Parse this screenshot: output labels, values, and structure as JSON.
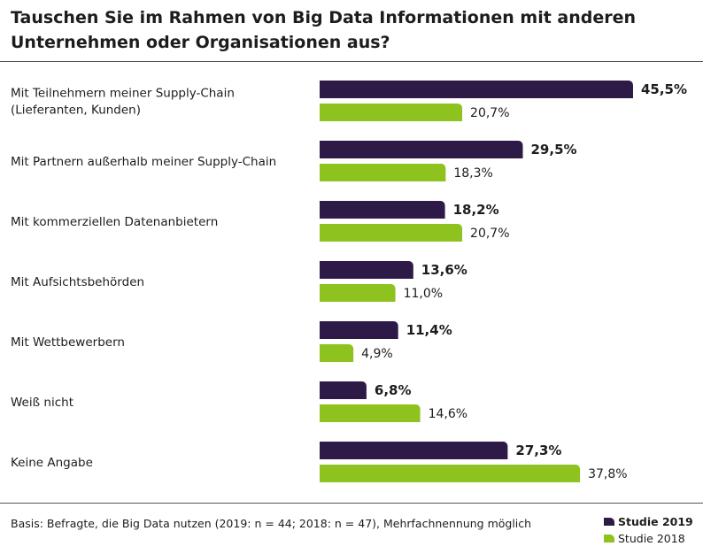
{
  "title": "Tauschen Sie im Rahmen von Big Data Informationen mit anderen Unternehmen oder Organisationen aus?",
  "footnote": "Basis: Befragte, die Big Data nutzen (2019: n = 44; 2018: n = 47), Mehrfachnennung möglich",
  "legend": {
    "items": [
      {
        "label": "Studie 2019",
        "color": "#2e1a47"
      },
      {
        "label": "Studie 2018",
        "color": "#8dc21f"
      }
    ]
  },
  "chart_data": {
    "type": "bar",
    "orientation": "horizontal",
    "categories": [
      [
        "Mit Teilnehmern meiner Supply-Chain",
        "(Lieferanten, Kunden)"
      ],
      [
        "Mit Partnern außerhalb meiner Supply-Chain"
      ],
      [
        "Mit kommerziellen Datenanbietern"
      ],
      [
        "Mit Aufsichtsbehörden"
      ],
      [
        "Mit Wettbewerbern"
      ],
      [
        "Weiß nicht"
      ],
      [
        "Keine Angabe"
      ]
    ],
    "series": [
      {
        "name": "Studie 2019",
        "color": "#2e1a47",
        "values": [
          45.5,
          29.5,
          18.2,
          13.6,
          11.4,
          6.8,
          27.3
        ],
        "labels": [
          "45,5%",
          "29,5%",
          "18,2%",
          "13,6%",
          "11,4%",
          "6,8%",
          "27,3%"
        ]
      },
      {
        "name": "Studie 2018",
        "color": "#8dc21f",
        "values": [
          20.7,
          18.3,
          20.7,
          11.0,
          4.9,
          14.6,
          37.8
        ],
        "labels": [
          "20,7%",
          "18,3%",
          "20,7%",
          "11,0%",
          "4,9%",
          "14,6%",
          "37,8%"
        ]
      }
    ],
    "xlim": [
      0,
      100
    ],
    "grid": false,
    "legend_position": "bottom-right"
  }
}
